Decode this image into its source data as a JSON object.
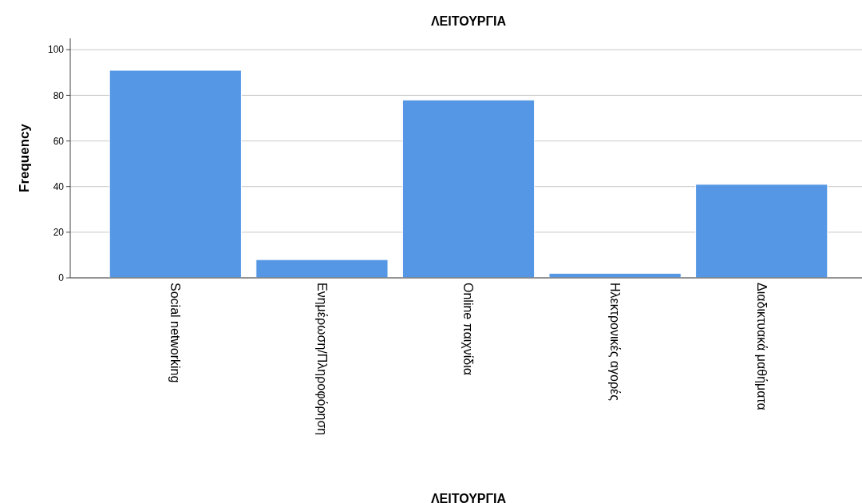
{
  "chart_data": {
    "type": "bar",
    "title": "ΛΕΙΤΟΥΡΓΙΑ",
    "xlabel": "ΛΕΙΤΟΥΡΓΙΑ",
    "ylabel": "Frequency",
    "categories": [
      "Social networking",
      "Ενημέρωση/Πληροφόρηση",
      "Online παιχνίδια",
      "Ηλεκτρονικές αγορές",
      "Διαδικτυακά μαθήματα"
    ],
    "values": [
      91,
      8,
      78,
      2,
      41
    ],
    "color": "#5597e5",
    "ylim": [
      0,
      105
    ],
    "yticks": [
      0,
      20,
      40,
      60,
      80,
      100
    ],
    "grid": "y"
  }
}
